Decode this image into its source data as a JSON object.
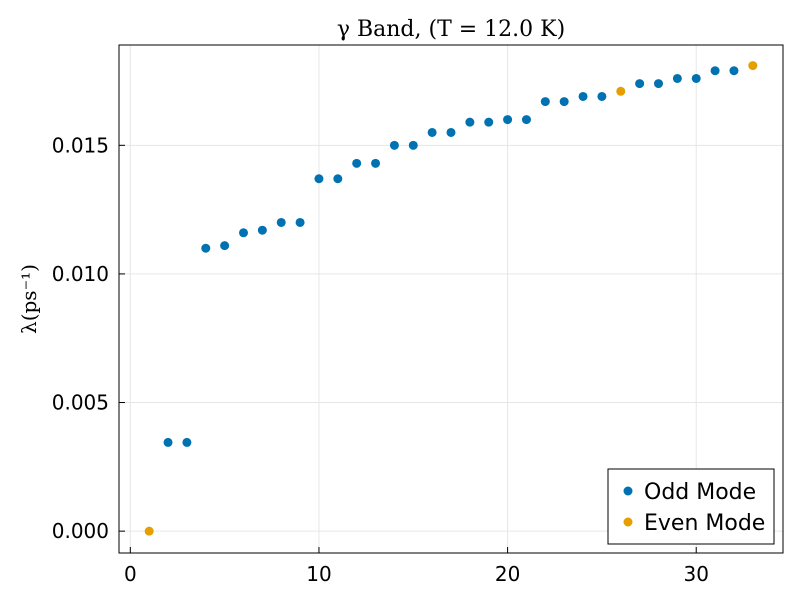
{
  "chart_data": {
    "type": "scatter",
    "title": "γ Band, (T = 12.0 K)",
    "xlabel": "",
    "ylabel": "λ(ps⁻¹)",
    "xlim": [
      -0.6,
      34.6
    ],
    "ylim": [
      -0.00085,
      0.0189
    ],
    "xticks": [
      0,
      10,
      20,
      30
    ],
    "yticks": [
      0.0,
      0.005,
      0.01,
      0.015
    ],
    "ytick_labels": [
      "0.000",
      "0.005",
      "0.010",
      "0.015"
    ],
    "grid": true,
    "legend_position": "bottom-right",
    "series": [
      {
        "name": "Odd Mode",
        "color": "#0072b2",
        "x": [
          2,
          3,
          4,
          5,
          6,
          7,
          8,
          9,
          10,
          11,
          12,
          13,
          14,
          15,
          16,
          17,
          18,
          19,
          20,
          21,
          22,
          23,
          24,
          25,
          27,
          28,
          29,
          30,
          31,
          32
        ],
        "y": [
          0.00345,
          0.00345,
          0.011,
          0.0111,
          0.0116,
          0.0117,
          0.012,
          0.012,
          0.0137,
          0.0137,
          0.0143,
          0.0143,
          0.015,
          0.015,
          0.0155,
          0.0155,
          0.0159,
          0.0159,
          0.016,
          0.016,
          0.0167,
          0.0167,
          0.0169,
          0.0169,
          0.0174,
          0.0174,
          0.0176,
          0.0176,
          0.0179,
          0.0179
        ]
      },
      {
        "name": "Even Mode",
        "color": "#e69f00",
        "x": [
          1,
          26,
          33
        ],
        "y": [
          0.0,
          0.0171,
          0.0181
        ]
      }
    ]
  }
}
